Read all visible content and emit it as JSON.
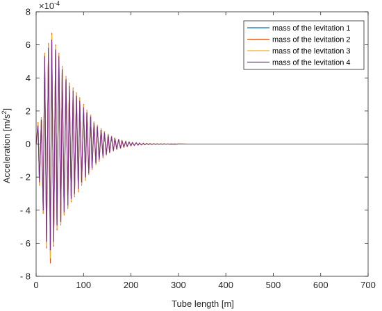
{
  "chart_data": {
    "type": "line",
    "title": "",
    "xlabel": "Tube length [m]",
    "ylabel_main": "Acceleration [m/s",
    "ylabel_sup": "2",
    "ylabel_end": "]",
    "y_multiplier_base": "×10",
    "y_multiplier_exp": "-4",
    "xlim": [
      0,
      700
    ],
    "ylim": [
      -8,
      8
    ],
    "y_unit_scale": 0.0001,
    "xticks": [
      0,
      100,
      200,
      300,
      400,
      500,
      600,
      700
    ],
    "yticks": [
      -8,
      -6,
      -4,
      -2,
      0,
      2,
      4,
      6,
      8
    ],
    "xtick_labels": [
      "0",
      "100",
      "200",
      "300",
      "400",
      "500",
      "600",
      "700"
    ],
    "ytick_labels": [
      "- 8",
      "- 6",
      "- 4",
      "- 2",
      "0",
      "2",
      "4",
      "6",
      "8"
    ],
    "grid": false,
    "legend_position": "top-right",
    "x": [
      0,
      4,
      7,
      11,
      15,
      18,
      22,
      26,
      30,
      33,
      37,
      41,
      44,
      48,
      52,
      55,
      59,
      63,
      67,
      70,
      74,
      78,
      81,
      85,
      89,
      92,
      96,
      100,
      104,
      107,
      111,
      115,
      118,
      122,
      126,
      129,
      133,
      137,
      141,
      144,
      148,
      152,
      155,
      159,
      163,
      166,
      170,
      174,
      178,
      181,
      185,
      189,
      192,
      196,
      200,
      203,
      207,
      211,
      215,
      218,
      222,
      226,
      229,
      233,
      237,
      240,
      244,
      248,
      252,
      255,
      259,
      263,
      266,
      270,
      274,
      277,
      281,
      285,
      289,
      292,
      296,
      300,
      320,
      350,
      400,
      700
    ],
    "series": [
      {
        "name": "mass of the levitation 1",
        "color": "#0072bd",
        "values": [
          0,
          1.2,
          -2.4,
          1.5,
          -4.1,
          5.4,
          -6.0,
          5.9,
          -6.5,
          6.4,
          -6.0,
          5.8,
          -5.0,
          5.4,
          -4.8,
          4.6,
          -4.2,
          4.0,
          -3.8,
          3.6,
          -3.4,
          3.3,
          -3.1,
          3.0,
          -2.8,
          2.7,
          -2.4,
          2.3,
          -2.1,
          2.0,
          -1.8,
          1.7,
          -1.5,
          1.3,
          -1.2,
          1.1,
          -1.0,
          0.9,
          -0.8,
          0.7,
          -0.65,
          0.58,
          -0.52,
          0.46,
          -0.41,
          0.36,
          -0.32,
          0.28,
          -0.25,
          0.22,
          -0.19,
          0.17,
          -0.15,
          0.13,
          -0.11,
          0.1,
          -0.09,
          0.08,
          -0.07,
          0.06,
          -0.05,
          0.045,
          -0.04,
          0.035,
          -0.03,
          0.026,
          -0.022,
          0.019,
          -0.016,
          0.014,
          -0.012,
          0.01,
          -0.009,
          0.008,
          -0.006,
          0.005,
          -0.004,
          0.003,
          -0.002,
          0.002,
          -0.001,
          0.001,
          0,
          0,
          0,
          0
        ]
      },
      {
        "name": "mass of the levitation 2",
        "color": "#d95319",
        "values": [
          0,
          1.3,
          -2.5,
          1.6,
          -4.2,
          5.5,
          -6.3,
          6.1,
          -7.2,
          6.7,
          -6.2,
          6.0,
          -5.2,
          5.5,
          -4.9,
          4.7,
          -4.3,
          4.1,
          -3.9,
          3.7,
          -3.5,
          3.4,
          -3.2,
          3.1,
          -2.9,
          2.8,
          -2.5,
          2.4,
          -2.2,
          2.05,
          -1.85,
          1.75,
          -1.55,
          1.35,
          -1.25,
          1.15,
          -1.05,
          0.95,
          -0.85,
          0.75,
          -0.68,
          0.6,
          -0.54,
          0.48,
          -0.43,
          0.38,
          -0.34,
          0.3,
          -0.27,
          0.24,
          -0.21,
          0.19,
          -0.17,
          0.15,
          -0.13,
          0.11,
          -0.1,
          0.09,
          -0.08,
          0.07,
          -0.06,
          0.05,
          -0.045,
          0.04,
          -0.035,
          0.03,
          -0.026,
          0.022,
          -0.019,
          0.016,
          -0.014,
          0.012,
          -0.01,
          0.009,
          -0.007,
          0.006,
          -0.005,
          0.004,
          -0.003,
          0.002,
          -0.002,
          0.001,
          0,
          0,
          0,
          0
        ]
      },
      {
        "name": "mass of the levitation 3",
        "color": "#edb120",
        "values": [
          0,
          1.25,
          -2.45,
          1.55,
          -4.15,
          5.45,
          -6.15,
          6.0,
          -6.9,
          6.6,
          -6.1,
          5.9,
          -5.1,
          5.45,
          -4.85,
          4.65,
          -4.25,
          4.05,
          -3.85,
          3.65,
          -3.45,
          3.35,
          -3.15,
          3.05,
          -2.85,
          2.75,
          -2.45,
          2.35,
          -2.15,
          2.02,
          -1.82,
          1.72,
          -1.52,
          1.32,
          -1.22,
          1.12,
          -1.02,
          0.92,
          -0.82,
          0.72,
          -0.66,
          0.59,
          -0.53,
          0.47,
          -0.42,
          0.37,
          -0.33,
          0.29,
          -0.26,
          0.23,
          -0.2,
          0.18,
          -0.16,
          0.14,
          -0.12,
          0.1,
          -0.09,
          0.08,
          -0.07,
          0.06,
          -0.05,
          0.045,
          -0.04,
          0.035,
          -0.03,
          0.026,
          -0.022,
          0.019,
          -0.016,
          0.014,
          -0.012,
          0.01,
          -0.009,
          0.008,
          -0.006,
          0.005,
          -0.004,
          0.003,
          -0.002,
          0.002,
          -0.001,
          0.001,
          0,
          0,
          0,
          0
        ]
      },
      {
        "name": "mass of the levitation 4",
        "color": "#7e2f8e",
        "values": [
          0,
          1.1,
          -2.3,
          1.45,
          -4.0,
          5.3,
          -5.9,
          5.8,
          -6.4,
          6.3,
          -5.9,
          5.7,
          -4.9,
          5.3,
          -4.7,
          4.5,
          -4.1,
          3.9,
          -3.7,
          3.5,
          -3.3,
          3.2,
          -3.0,
          2.9,
          -2.7,
          2.6,
          -2.3,
          2.2,
          -2.0,
          1.9,
          -1.75,
          1.65,
          -1.45,
          1.25,
          -1.15,
          1.05,
          -0.95,
          0.85,
          -0.75,
          0.68,
          -0.62,
          0.55,
          -0.5,
          0.44,
          -0.39,
          0.34,
          -0.3,
          0.27,
          -0.24,
          0.21,
          -0.18,
          0.16,
          -0.14,
          0.12,
          -0.1,
          0.09,
          -0.08,
          0.07,
          -0.06,
          0.055,
          -0.048,
          0.042,
          -0.037,
          0.032,
          -0.028,
          0.024,
          -0.02,
          0.017,
          -0.015,
          0.013,
          -0.011,
          0.009,
          -0.008,
          0.007,
          -0.006,
          0.005,
          -0.004,
          0.003,
          -0.002,
          0.002,
          -0.001,
          0.001,
          0,
          0,
          0,
          0
        ]
      }
    ]
  }
}
